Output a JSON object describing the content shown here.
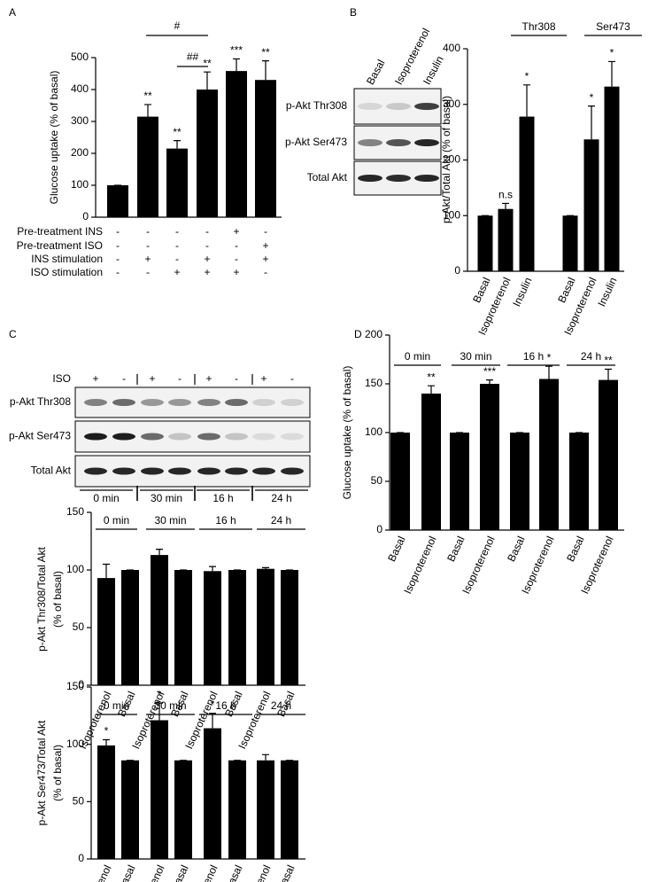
{
  "blots": [
    {
      "panel": "B",
      "lanes": [
        "Basal",
        "Isoproterenol",
        "Insulin"
      ],
      "rows": [
        "p-Akt Thr308",
        "p-Akt Ser473",
        "Total Akt"
      ]
    },
    {
      "panel": "C",
      "treatment": {
        "label": "ISO",
        "signs": [
          "+",
          "-",
          "+",
          "-",
          "+",
          "-",
          "+",
          "-"
        ]
      },
      "rows": [
        "p-Akt Thr308",
        "p-Akt Ser473",
        "Total Akt"
      ],
      "timepoints": [
        "0 min",
        "30 min",
        "16 h",
        "24 h"
      ]
    }
  ],
  "chart_data": [
    {
      "type": "bar",
      "panel": "A",
      "ylabel": "Glucose uptake (% of basal)",
      "color": "#000000",
      "values": [
        100,
        315,
        215,
        400,
        458,
        430
      ],
      "errors": [
        0,
        38,
        25,
        55,
        38,
        60
      ],
      "annotations": [
        null,
        "**",
        "**",
        "**",
        "***",
        "**"
      ],
      "brackets": [
        "#",
        "##"
      ],
      "ylim": [
        0,
        500
      ],
      "yticks": [
        0,
        100,
        200,
        300,
        400,
        500
      ],
      "conditions": [
        {
          "label": "Pre-treatment INS",
          "signs": [
            "-",
            "-",
            "-",
            "-",
            "+",
            "-"
          ]
        },
        {
          "label": "Pre-treatment ISO",
          "signs": [
            "-",
            "-",
            "-",
            "-",
            "-",
            "+"
          ]
        },
        {
          "label": "INS stimulation",
          "signs": [
            "-",
            "+",
            "-",
            "+",
            "-",
            "+"
          ]
        },
        {
          "label": "ISO stimulation",
          "signs": [
            "-",
            "-",
            "+",
            "+",
            "+",
            "-"
          ]
        }
      ]
    },
    {
      "type": "bar",
      "ylabel": "p-Akt/Total Akt (% of basal)",
      "color": "#000000",
      "categories": [
        "Basal",
        "Isoproterenol",
        "Insulin",
        "Basal",
        "Isoproterenol",
        "Insulin"
      ],
      "groups": [
        "Thr308",
        "Ser473"
      ],
      "values": [
        100,
        112,
        278,
        100,
        237,
        332
      ],
      "errors": [
        0,
        10,
        57,
        0,
        60,
        45
      ],
      "annotations": [
        null,
        "n.s",
        "*",
        null,
        "*",
        "*"
      ],
      "ylim": [
        0,
        400
      ],
      "yticks": [
        0,
        100,
        200,
        300,
        400
      ]
    },
    {
      "type": "bar",
      "ylabel": [
        "p-Akt Thr308/Total Akt",
        "(% of basal)"
      ],
      "color": "#000000",
      "categories": [
        "Isoproterenol",
        "Basal",
        "Isoproterenol",
        "Basal",
        "Isoproterenol",
        "Basal",
        "Isoproterenol",
        "Basal"
      ],
      "groups": [
        "0 min",
        "30 min",
        "16 h",
        "24 h"
      ],
      "values": [
        93,
        100,
        113,
        100,
        99,
        100,
        101,
        100
      ],
      "errors": [
        12,
        0,
        5,
        0,
        4,
        0,
        1,
        0
      ],
      "ylim": [
        0,
        150
      ],
      "yticks": [
        0,
        50,
        100,
        150
      ]
    },
    {
      "type": "bar",
      "ylabel": [
        "p-Akt Ser473/Total Akt",
        "(% of basal)"
      ],
      "color": "#000000",
      "categories": [
        "Isoproterenol",
        "Basal",
        "Isoproterenol",
        "Basal",
        "Isoproterenol",
        "Basal",
        "Isoproterenol",
        "Basal"
      ],
      "groups": [
        "0 min",
        "30 min",
        "16 h",
        "24 h"
      ],
      "values": [
        99,
        86,
        121,
        86,
        114,
        86,
        86,
        86
      ],
      "errors": [
        5,
        0,
        15,
        0,
        13,
        0,
        5,
        0
      ],
      "annotations": [
        "*",
        null,
        "*",
        null,
        "*",
        null,
        null,
        null
      ],
      "ylim": [
        0,
        150
      ],
      "yticks": [
        0,
        50,
        100,
        150
      ]
    },
    {
      "type": "bar",
      "panel": "D",
      "ylabel": "Glucose uptake (% of basal)",
      "color": "#000000",
      "categories": [
        "Basal",
        "Isoproterenol",
        "Basal",
        "Isoproterenol",
        "Basal",
        "Isoproterenol",
        "Basal",
        "Isoproterenol"
      ],
      "groups": [
        "0 min",
        "30 min",
        "16 h",
        "24 h"
      ],
      "values": [
        100,
        140,
        100,
        150,
        100,
        155,
        100,
        154
      ],
      "errors": [
        0,
        8,
        0,
        4,
        0,
        13,
        0,
        11
      ],
      "annotations": [
        null,
        "**",
        null,
        "***",
        null,
        "*",
        null,
        "**"
      ],
      "ylim": [
        0,
        200
      ],
      "yticks": [
        0,
        50,
        100,
        150,
        200
      ]
    }
  ]
}
